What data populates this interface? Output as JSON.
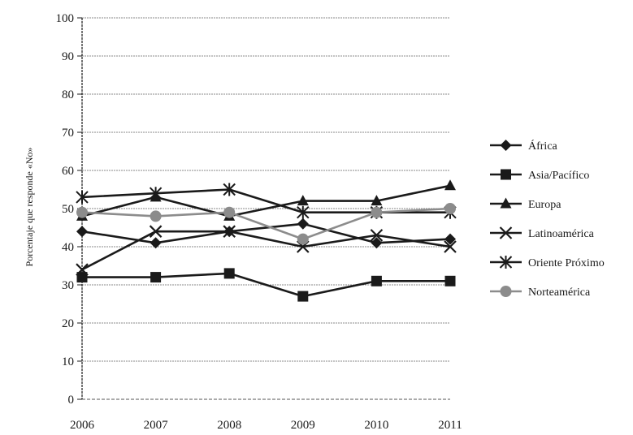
{
  "chart_data": {
    "type": "line",
    "title": "",
    "xlabel": "",
    "ylabel": "Porcentaje que responde «No»",
    "ylim": [
      0,
      100
    ],
    "yticks": [
      0,
      10,
      20,
      30,
      40,
      50,
      60,
      70,
      80,
      90,
      100
    ],
    "grid": true,
    "legend_position": "right",
    "categories": [
      "2006",
      "2007",
      "2008",
      "2009",
      "2010",
      "2011"
    ],
    "series": [
      {
        "name": "África",
        "marker": "diamond",
        "color": "#1a1a1a",
        "values": [
          44,
          41,
          44,
          46,
          41,
          42
        ]
      },
      {
        "name": "Asia/Pacífico",
        "marker": "square",
        "color": "#1a1a1a",
        "values": [
          32,
          32,
          33,
          27,
          31,
          31
        ]
      },
      {
        "name": "Europa",
        "marker": "triangle",
        "color": "#1a1a1a",
        "values": [
          48,
          53,
          48,
          52,
          52,
          56
        ]
      },
      {
        "name": "Latinoamérica",
        "marker": "x",
        "color": "#1a1a1a",
        "values": [
          34,
          44,
          44,
          40,
          43,
          40
        ]
      },
      {
        "name": "Oriente Próximo",
        "marker": "star",
        "color": "#1a1a1a",
        "values": [
          53,
          54,
          55,
          49,
          49,
          49
        ]
      },
      {
        "name": "Norteamérica",
        "marker": "circle",
        "color": "#8c8c8c",
        "values": [
          49,
          48,
          49,
          42,
          49,
          50
        ]
      }
    ]
  }
}
